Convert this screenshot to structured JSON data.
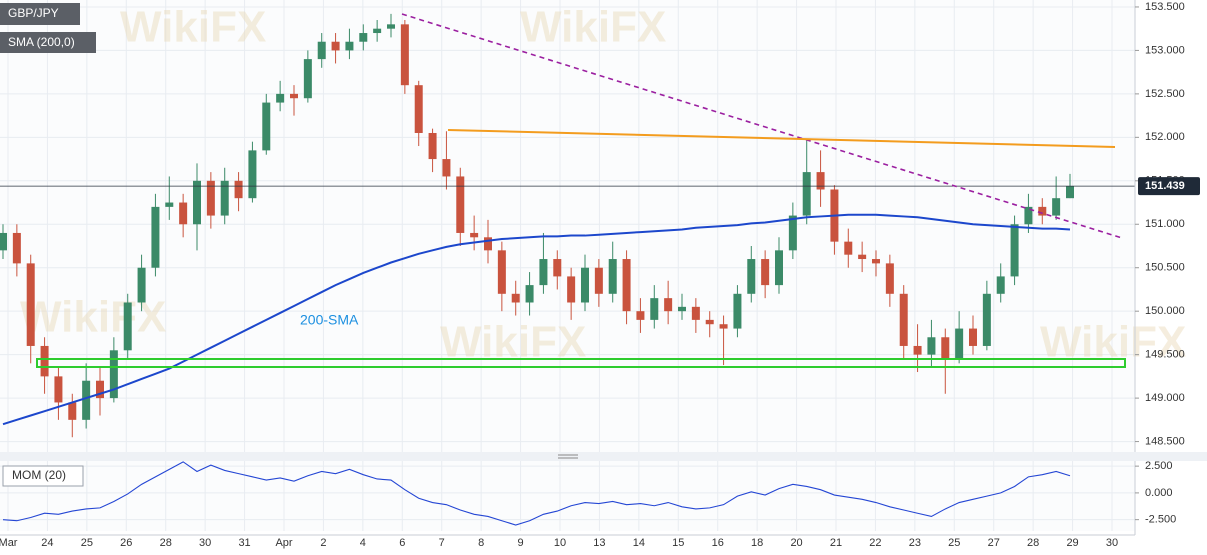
{
  "watermark": "WikiFX",
  "chart_data": [
    {
      "type": "candlestick",
      "title": "GBP/JPY",
      "up_color": "#3b8a68",
      "down_color": "#c9533e",
      "open": [
        150.7,
        150.9,
        150.55,
        149.6,
        149.25,
        148.95,
        148.75,
        149.2,
        149.0,
        149.55,
        150.1,
        150.5,
        151.2,
        151.25,
        151.0,
        151.5,
        151.1,
        151.5,
        151.3,
        151.85,
        152.4,
        152.5,
        152.45,
        152.9,
        153.1,
        153.0,
        153.1,
        153.2,
        153.25,
        153.3,
        152.6,
        152.05,
        151.75,
        151.55,
        150.9,
        150.85,
        150.7,
        150.2,
        150.1,
        150.3,
        150.6,
        150.4,
        150.1,
        150.5,
        150.2,
        150.6,
        150.0,
        149.9,
        150.15,
        150.0,
        150.05,
        149.9,
        149.85,
        149.8,
        150.2,
        150.6,
        150.3,
        150.7,
        151.1,
        151.6,
        151.4,
        150.8,
        150.65,
        150.6,
        150.55,
        150.2,
        149.6,
        149.5,
        149.7,
        149.45,
        149.8,
        149.6,
        150.2,
        150.4,
        151.0,
        151.2,
        151.1,
        151.3
      ],
      "high": [
        151.0,
        151.0,
        150.65,
        149.7,
        149.35,
        149.05,
        149.4,
        149.35,
        149.7,
        150.2,
        150.65,
        151.35,
        151.55,
        151.35,
        151.7,
        151.6,
        151.65,
        151.6,
        151.95,
        152.5,
        152.65,
        152.6,
        153.0,
        153.2,
        153.2,
        153.25,
        153.3,
        153.35,
        153.42,
        153.35,
        152.65,
        152.1,
        152.07,
        151.65,
        151.1,
        151.05,
        150.8,
        150.35,
        150.45,
        150.9,
        150.7,
        150.5,
        150.65,
        150.6,
        150.8,
        150.7,
        150.15,
        150.3,
        150.35,
        150.2,
        150.15,
        150.0,
        149.95,
        150.3,
        150.75,
        150.7,
        150.85,
        151.25,
        151.97,
        151.85,
        151.45,
        150.95,
        150.8,
        150.7,
        150.65,
        150.3,
        149.85,
        149.9,
        149.8,
        150.0,
        149.95,
        150.35,
        150.55,
        151.1,
        151.35,
        151.3,
        151.55,
        151.58
      ],
      "low": [
        150.6,
        150.4,
        149.4,
        149.05,
        148.75,
        148.55,
        148.65,
        148.8,
        148.95,
        149.45,
        150.0,
        150.4,
        151.05,
        150.85,
        150.7,
        150.95,
        151.0,
        151.15,
        151.25,
        151.8,
        152.3,
        152.25,
        152.4,
        152.8,
        152.85,
        152.9,
        153.0,
        153.1,
        153.15,
        152.5,
        151.9,
        151.6,
        151.4,
        150.75,
        150.7,
        150.55,
        150.0,
        149.95,
        149.95,
        150.2,
        150.25,
        149.9,
        150.0,
        150.05,
        150.1,
        149.85,
        149.75,
        149.8,
        149.85,
        149.9,
        149.75,
        149.7,
        149.38,
        149.7,
        150.1,
        150.15,
        150.2,
        150.6,
        151.0,
        151.2,
        150.65,
        150.5,
        150.45,
        150.4,
        150.05,
        149.45,
        149.3,
        149.35,
        149.05,
        149.4,
        149.5,
        149.55,
        150.1,
        150.3,
        150.9,
        151.0,
        151.05,
        151.3
      ],
      "close": [
        150.9,
        150.55,
        149.6,
        149.25,
        148.95,
        148.75,
        149.2,
        149.0,
        149.55,
        150.1,
        150.5,
        151.2,
        151.25,
        151.0,
        151.5,
        151.1,
        151.5,
        151.3,
        151.85,
        152.4,
        152.5,
        152.45,
        152.9,
        153.1,
        153.0,
        153.1,
        153.2,
        153.25,
        153.3,
        152.6,
        152.05,
        151.75,
        151.55,
        150.9,
        150.85,
        150.7,
        150.2,
        150.1,
        150.3,
        150.6,
        150.4,
        150.1,
        150.5,
        150.2,
        150.6,
        150.0,
        149.9,
        150.15,
        150.0,
        150.05,
        149.9,
        149.85,
        149.8,
        150.2,
        150.6,
        150.3,
        150.7,
        151.1,
        151.6,
        151.4,
        150.8,
        150.65,
        150.6,
        150.55,
        150.2,
        149.6,
        149.5,
        149.7,
        149.45,
        149.8,
        149.6,
        150.2,
        150.4,
        151.0,
        151.2,
        151.1,
        151.3,
        151.44
      ],
      "overlays": [
        {
          "name": "SMA (200,0)",
          "label": "200-SMA",
          "color": "#1c47cc",
          "values": [
            148.7,
            148.75,
            148.8,
            148.85,
            148.9,
            148.95,
            149.0,
            149.05,
            149.1,
            149.16,
            149.22,
            149.28,
            149.34,
            149.42,
            149.5,
            149.58,
            149.66,
            149.74,
            149.82,
            149.9,
            149.98,
            150.06,
            150.14,
            150.22,
            150.3,
            150.37,
            150.44,
            150.5,
            150.56,
            150.61,
            150.66,
            150.7,
            150.74,
            150.77,
            150.79,
            150.81,
            150.83,
            150.84,
            150.85,
            150.86,
            150.86,
            150.87,
            150.87,
            150.88,
            150.89,
            150.9,
            150.91,
            150.92,
            150.93,
            150.94,
            150.96,
            150.97,
            150.98,
            150.99,
            151.01,
            151.02,
            151.04,
            151.06,
            151.08,
            151.09,
            151.1,
            151.11,
            151.11,
            151.11,
            151.1,
            151.09,
            151.08,
            151.06,
            151.04,
            151.02,
            151.0,
            150.99,
            150.98,
            150.97,
            150.96,
            150.95,
            150.95,
            150.94
          ]
        }
      ],
      "last_price": 151.439,
      "ylim": [
        148.38,
        153.58
      ],
      "yticks": [
        {
          "value": 148.5,
          "label": "148.500"
        },
        {
          "value": 149,
          "label": "149.000"
        },
        {
          "value": 149.5,
          "label": "149.500"
        },
        {
          "value": 150,
          "label": "150.000"
        },
        {
          "value": 150.5,
          "label": "150.500"
        },
        {
          "value": 151,
          "label": "151.000"
        },
        {
          "value": 151.5,
          "label": "151.500"
        },
        {
          "value": 152,
          "label": "152.000"
        },
        {
          "value": 152.5,
          "label": "152.500"
        },
        {
          "value": 153,
          "label": "153.000"
        },
        {
          "value": 153.5,
          "label": "153.500"
        }
      ]
    },
    {
      "type": "line",
      "series": [
        {
          "name": "MOM (20)",
          "color": "#2446d4",
          "values": [
            -2.5,
            -2.6,
            -2.3,
            -1.9,
            -2.0,
            -1.7,
            -1.5,
            -1.4,
            -0.8,
            -0.1,
            0.8,
            1.5,
            2.2,
            2.9,
            2.0,
            2.6,
            2.1,
            1.8,
            1.5,
            1.2,
            1.4,
            1.1,
            1.6,
            2.0,
            1.8,
            2.2,
            1.7,
            1.3,
            1.2,
            0.3,
            -0.5,
            -0.9,
            -1.1,
            -1.6,
            -2.0,
            -2.2,
            -2.6,
            -3.0,
            -2.6,
            -2.0,
            -1.7,
            -1.2,
            -0.9,
            -1.0,
            -0.8,
            -1.1,
            -1.0,
            -1.2,
            -0.9,
            -1.3,
            -1.5,
            -1.4,
            -1.1,
            -0.3,
            0.1,
            -0.2,
            0.4,
            0.8,
            0.6,
            0.3,
            -0.2,
            -0.4,
            -0.6,
            -0.9,
            -1.3,
            -1.6,
            -1.9,
            -2.2,
            -1.5,
            -0.9,
            -0.6,
            -0.3,
            0.0,
            0.6,
            1.5,
            1.7,
            2.0,
            1.6
          ]
        }
      ],
      "ylim": [
        -3.56,
        2.98
      ],
      "yticks": [
        {
          "value": -2.5,
          "label": "-2.500"
        },
        {
          "value": 0,
          "label": "0.000"
        },
        {
          "value": 2.5,
          "label": "2.500"
        }
      ],
      "x_labels": [
        "Mar",
        "24",
        "25",
        "26",
        "28",
        "30",
        "31",
        "Apr",
        "2",
        "4",
        "6",
        "7",
        "8",
        "9",
        "10",
        "13",
        "14",
        "15",
        "16",
        "18",
        "20",
        "21",
        "22",
        "23",
        "25",
        "27",
        "28",
        "29",
        "30"
      ]
    }
  ]
}
